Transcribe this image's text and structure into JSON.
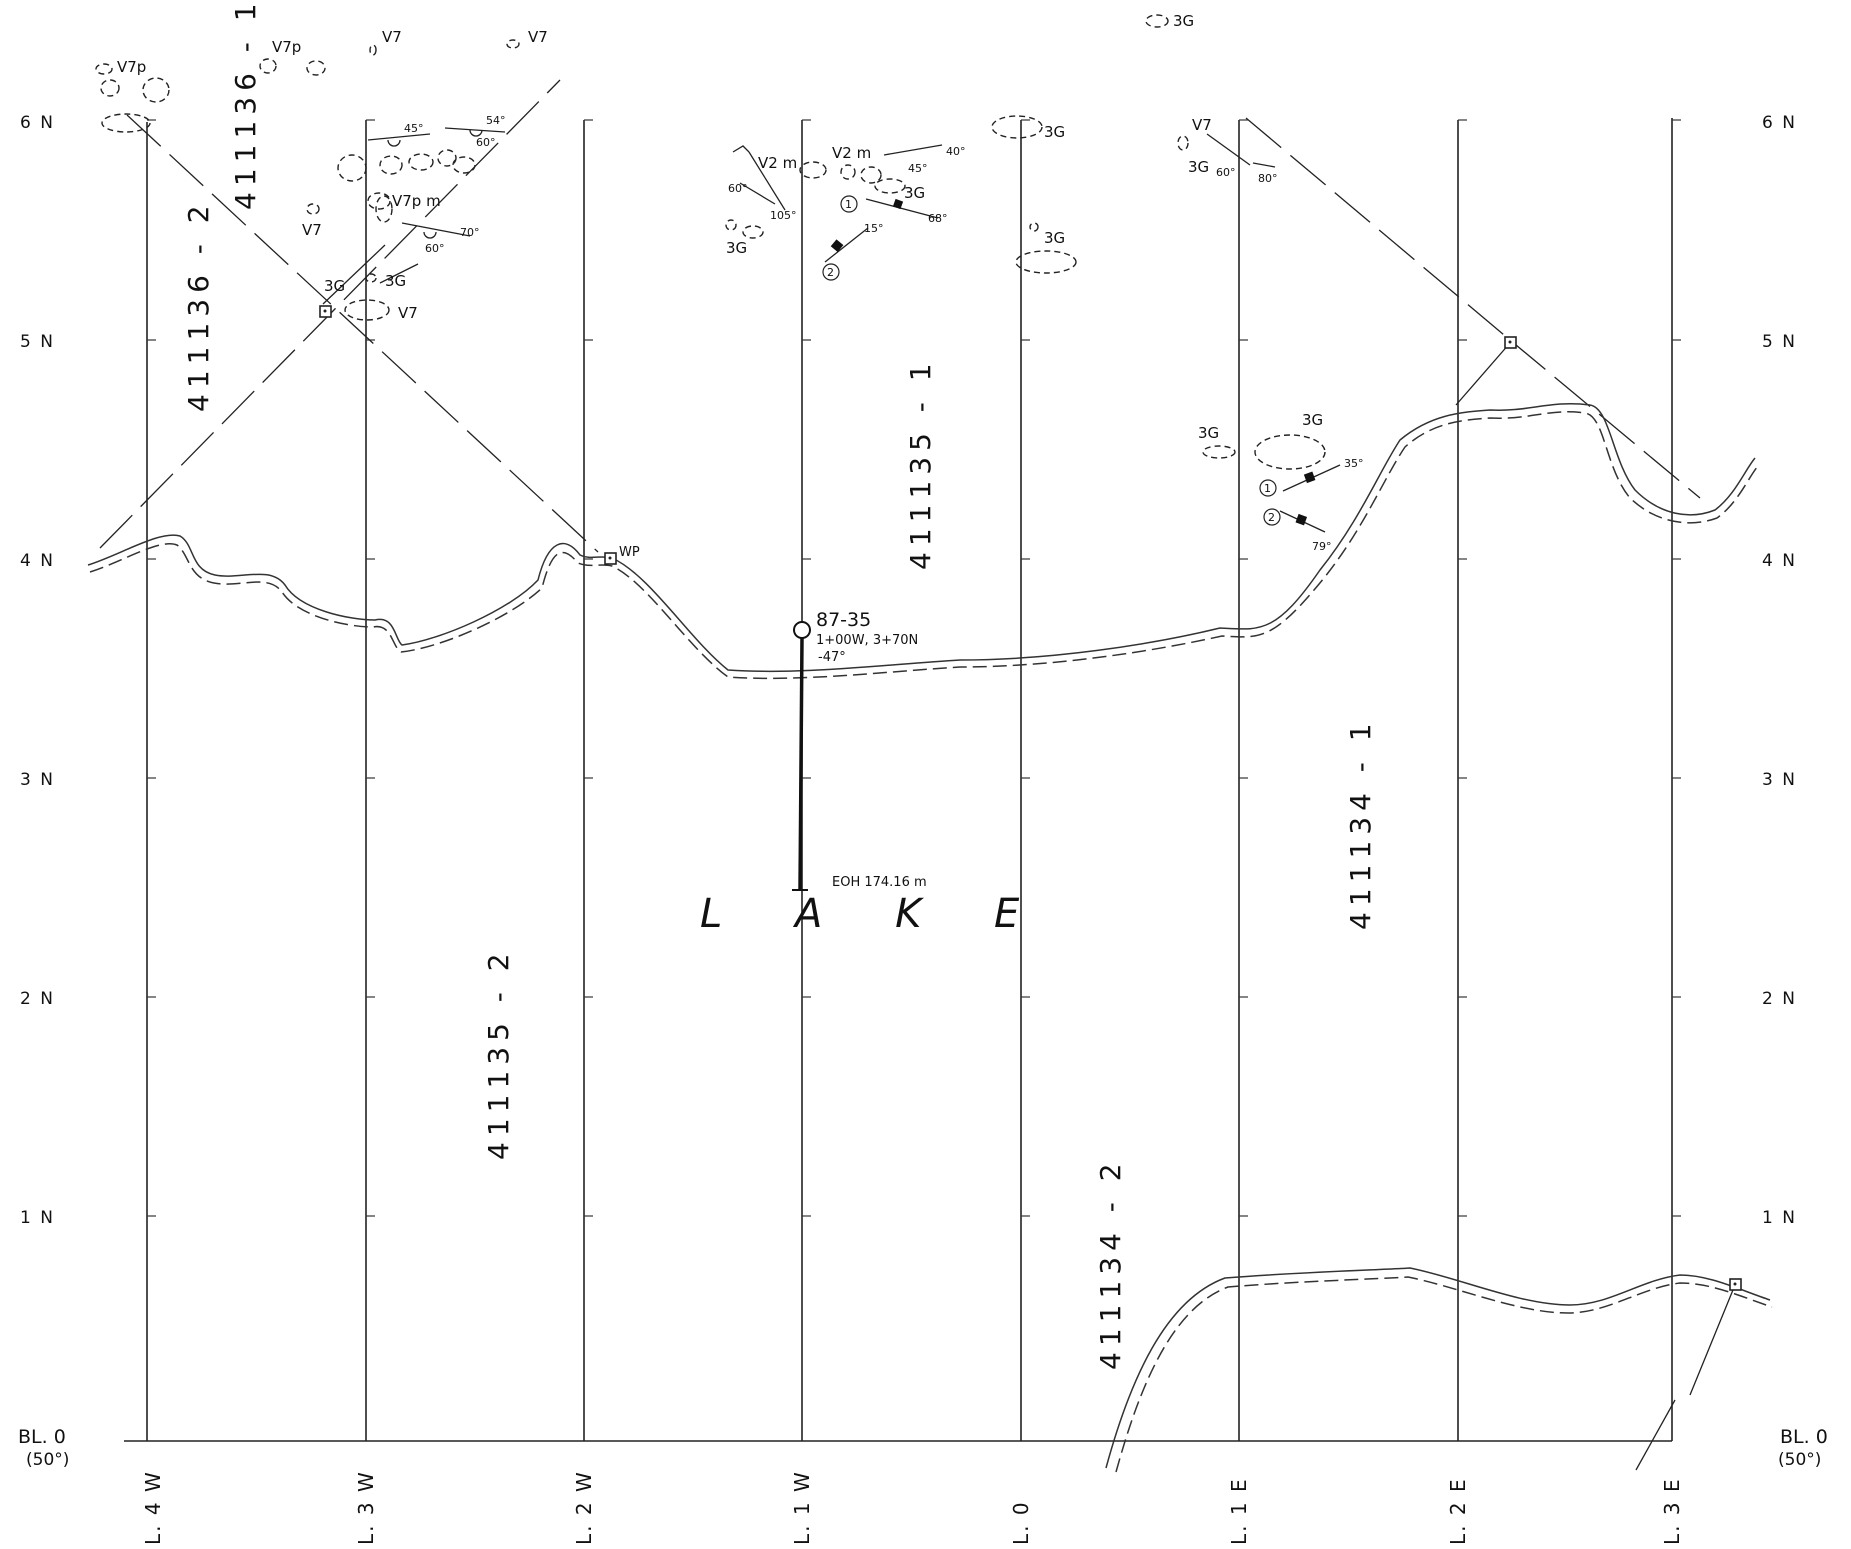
{
  "map": {
    "baseline": {
      "label": "BL. 0",
      "azimuth": "(50°)"
    },
    "northings": [
      "6 N",
      "5 N",
      "4 N",
      "3 N",
      "2 N",
      "1 N"
    ],
    "lines": [
      "L. 4 W",
      "L. 3 W",
      "L. 2 W",
      "L. 1 W",
      "L. 0",
      "L. 1 E",
      "L. 2 E",
      "L. 3 E"
    ],
    "claims": [
      "411136 - 1",
      "411136 - 2",
      "411135 - 1",
      "411135 - 2",
      "411134 - 1",
      "411134 - 2"
    ],
    "lake_label": "L A K E",
    "drill_hole": {
      "id": "87-35",
      "collar": "1+00W, 3+70N",
      "dip": "-47°",
      "eoh": "EOH 174.16 m"
    },
    "post_label": "WP",
    "rock_units": {
      "v7": "V7",
      "v7p": "V7p",
      "v7pm": "V7p m",
      "v2m": "V2 m",
      "g3": "3G"
    },
    "markers": {
      "one": "1",
      "two": "2"
    },
    "angles": {
      "a45": "45°",
      "a54": "54°",
      "a60": "60°",
      "a70": "70°",
      "a40": "40°",
      "a105": "105°",
      "a15": "15°",
      "a68": "68°",
      "a80": "80°",
      "a35": "35°",
      "a79": "79°"
    }
  }
}
